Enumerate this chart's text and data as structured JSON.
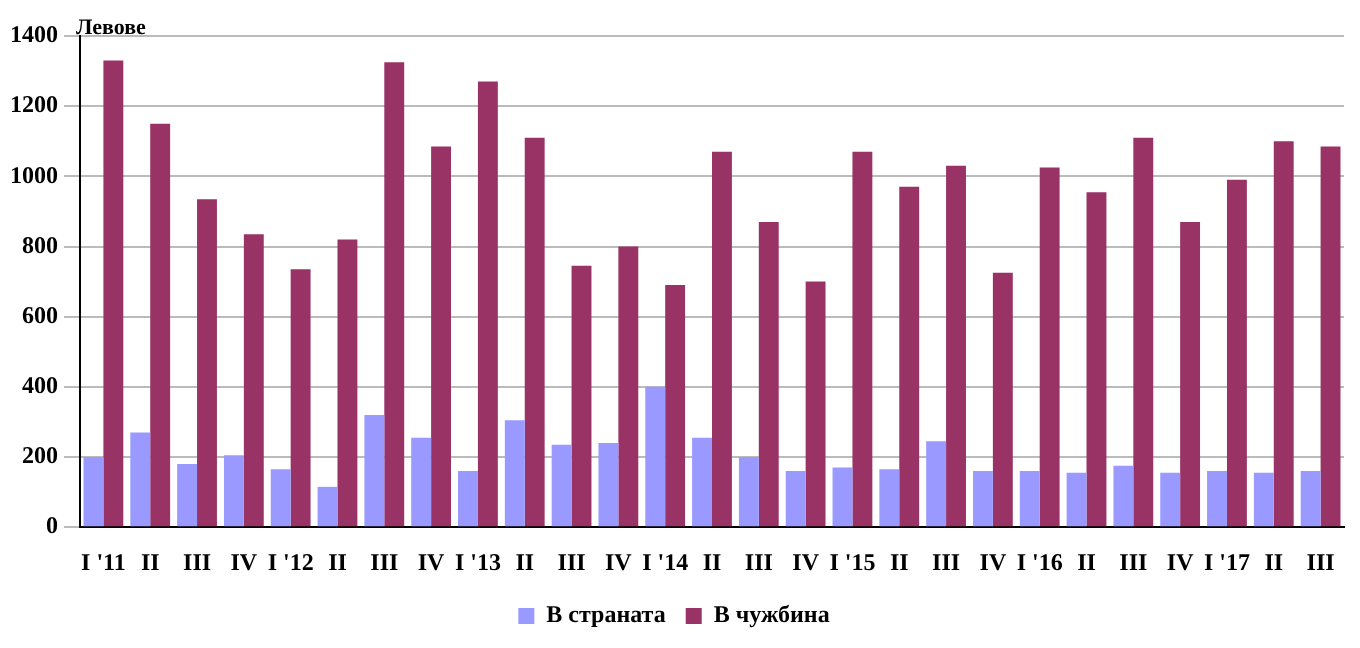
{
  "chart_data": {
    "type": "bar",
    "ylabel": "Левове",
    "categories": [
      "I '11",
      "II",
      "III",
      "IV",
      "I '12",
      "II",
      "III",
      "IV",
      "I '13",
      "II",
      "III",
      "IV",
      "I '14",
      "II",
      "III",
      "IV",
      "I '15",
      "II",
      "III",
      "IV",
      "I '16",
      "II",
      "III",
      "IV",
      "I '17",
      "II",
      "III"
    ],
    "series": [
      {
        "name": "В страната",
        "color": "#9999ff",
        "values": [
          200,
          270,
          180,
          205,
          165,
          115,
          320,
          255,
          160,
          305,
          235,
          240,
          400,
          255,
          200,
          160,
          170,
          165,
          245,
          160,
          160,
          155,
          175,
          155,
          160,
          155,
          160
        ]
      },
      {
        "name": "В чужбина",
        "color": "#993366",
        "values": [
          1330,
          1150,
          935,
          835,
          735,
          820,
          1325,
          1085,
          1270,
          1110,
          745,
          800,
          690,
          1070,
          870,
          700,
          1070,
          970,
          1030,
          725,
          1025,
          955,
          1110,
          870,
          990,
          1100,
          1085
        ]
      }
    ],
    "ylim": [
      0,
      1400
    ],
    "yticks": [
      0,
      200,
      400,
      600,
      800,
      1000,
      1200,
      1400
    ],
    "grid": "y",
    "legend": "bottom"
  }
}
